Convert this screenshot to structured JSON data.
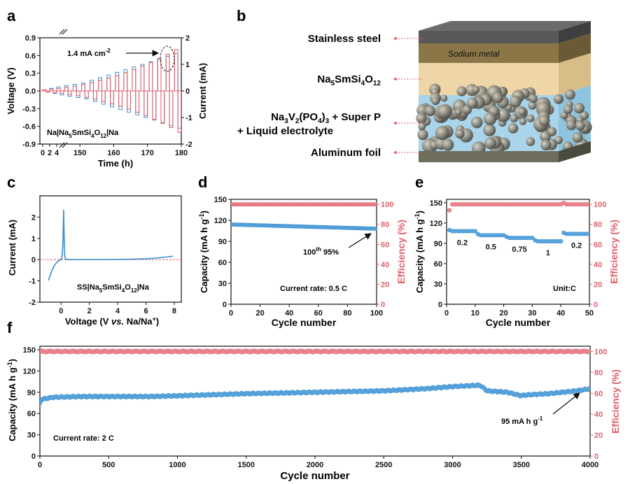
{
  "colors": {
    "red": "#e0606b",
    "blue": "#3a8fd0",
    "blue_face": "#5ba6dd",
    "red_face": "#ec8a93"
  },
  "panels": {
    "a": {
      "letter": "a",
      "ylabel_left": "Voltage (V)",
      "ylabel_right": "Current (mA)",
      "xlabel": "Time (h)",
      "annotation": "1.4 mA cm",
      "annotation_sup": "-2",
      "cell_label": {
        "t1": "Na|Na",
        "s1": "5",
        "t2": "SmSi",
        "s2": "4",
        "t3": "O",
        "s3": "12",
        "t4": "|Na"
      }
    },
    "b": {
      "letter": "b",
      "label_steel": "Stainless steel",
      "label_sodium": "Sodium metal",
      "label_electrolyte": {
        "t1": "Na",
        "s1": "5",
        "t2": "SmSi",
        "s2": "4",
        "t3": "O",
        "s3": "12"
      },
      "label_cathode_line1": {
        "t1": "Na",
        "s1": "3",
        "t2": "V",
        "s2": "2",
        "t3": "(PO",
        "s3": "4",
        "t4": ")",
        "s4": "3",
        "t5": " + Super P"
      },
      "label_cathode_line2": "+ Liquid electrolyte",
      "label_al": "Aluminum foil"
    },
    "c": {
      "letter": "c",
      "ylabel": "Current (mA)",
      "xlabel": {
        "t1": "Voltage (V ",
        "t2": "vs.",
        "t3": " Na/Na",
        "s": "+",
        "t4": ")"
      },
      "cell_label": {
        "t1": "SS|Na",
        "s1": "5",
        "t2": "SmSi",
        "s2": "4",
        "t3": "O",
        "s3": "12",
        "t4": "|Na"
      }
    },
    "d": {
      "letter": "d",
      "ylabel_left": "Capacity (mA h g",
      "ylabel_left_sup": "-1",
      "ylabel_left_end": ")",
      "ylabel_right": "Efficiency (%)",
      "xlabel": "Cycle number",
      "annotation": {
        "t1": "100",
        "sup": "th",
        "t2": " 95%"
      },
      "rate_label": "Current rate: 0.5 C"
    },
    "e": {
      "letter": "e",
      "ylabel_left": "Capacity (mA h g",
      "ylabel_left_sup": "-1",
      "ylabel_left_end": ")",
      "ylabel_right": "Efficiency (%)",
      "xlabel": "Cycle number",
      "rate_labels": [
        "0.2",
        "0.5",
        "0.75",
        "1",
        "0.2"
      ],
      "unit_label": "Unit:C"
    },
    "f": {
      "letter": "f",
      "ylabel_left": "Capacity (mA h g",
      "ylabel_left_sup": "-1",
      "ylabel_left_end": ")",
      "ylabel_right": "Efficiency (%)",
      "xlabel": "Cycle number",
      "annotation": "95 mA h g",
      "annotation_sup": "-1",
      "rate_label": "Current rate: 2 C"
    }
  },
  "chart_data": [
    {
      "panel": "a",
      "type": "line",
      "title": "",
      "xlabel": "Time (h)",
      "ylabel": "Voltage (V)",
      "y2label": "Current (mA)",
      "xticks": [
        "0",
        "2",
        "4",
        "150",
        "160",
        "170",
        "180"
      ],
      "xlim_broken": [
        [
          0,
          4
        ],
        [
          145,
          180
        ]
      ],
      "ylim": [
        -0.9,
        0.9
      ],
      "yticks": [
        -0.9,
        -0.6,
        -0.3,
        0.0,
        0.3,
        0.6,
        0.9
      ],
      "y2lim": [
        -2,
        2
      ],
      "y2ticks": [
        -2,
        -1,
        0,
        1,
        2
      ],
      "series": [
        {
          "name": "Voltage",
          "color": "#e0606b",
          "steps_h": [
            0,
            2,
            4,
            145.5,
            148,
            150.5,
            153,
            155.5,
            158,
            160.5,
            163,
            165.5,
            168,
            170.5,
            173,
            175.5,
            178
          ],
          "peak_voltage": [
            0.02,
            0.03,
            0.04,
            0.06,
            0.08,
            0.11,
            0.14,
            0.18,
            0.22,
            0.26,
            0.31,
            0.36,
            0.42,
            0.48,
            0.55,
            0.62,
            0.7
          ]
        },
        {
          "name": "Current",
          "color": "#3a8fd0",
          "steps_h": [
            0,
            2,
            4,
            145.5,
            148,
            150.5,
            153,
            155.5,
            158,
            160.5,
            163,
            165.5,
            168,
            170.5,
            173,
            175.5,
            178
          ],
          "current_mA": [
            0.05,
            0.1,
            0.15,
            0.2,
            0.25,
            0.3,
            0.4,
            0.5,
            0.6,
            0.7,
            0.8,
            0.9,
            1.0,
            1.1,
            1.2,
            1.3,
            1.4
          ]
        }
      ]
    },
    {
      "panel": "c",
      "type": "line",
      "title": "",
      "xlabel": "Voltage (V vs. Na/Na+)",
      "ylabel": "Current (mA)",
      "xlim": [
        -1.5,
        8.5
      ],
      "xticks": [
        0,
        2,
        4,
        6,
        8
      ],
      "ylim": [
        -2,
        3
      ],
      "yticks": [
        -2,
        -1,
        0,
        1,
        2
      ],
      "series": [
        {
          "name": "LSV",
          "color": "#3a8fd0",
          "x": [
            -0.9,
            -0.7,
            -0.5,
            -0.3,
            -0.1,
            0.05,
            0.12,
            0.18,
            0.24,
            0.3,
            0.6,
            1,
            2,
            3,
            4,
            5,
            6,
            6.5,
            7,
            7.5,
            7.9
          ],
          "y": [
            -0.98,
            -0.6,
            -0.3,
            -0.12,
            -0.03,
            0.05,
            0.6,
            2.35,
            0.3,
            0.02,
            0.0,
            0.0,
            0.0,
            0.0,
            0.01,
            0.02,
            0.04,
            0.06,
            0.09,
            0.13,
            0.16
          ]
        },
        {
          "name": "zero line",
          "color": "#e0606b",
          "x": [
            -1.5,
            8.5
          ],
          "y": [
            0,
            0
          ]
        }
      ]
    },
    {
      "panel": "d",
      "type": "scatter",
      "title": "",
      "xlabel": "Cycle number",
      "ylabel": "Capacity (mA h g-1)",
      "y2label": "Efficiency (%)",
      "xlim": [
        0,
        100
      ],
      "xticks": [
        0,
        20,
        40,
        60,
        80,
        100
      ],
      "ylim": [
        0,
        150
      ],
      "yticks": [
        0,
        30,
        60,
        90,
        120,
        150
      ],
      "y2lim": [
        0,
        105
      ],
      "y2ticks": [
        0,
        20,
        40,
        60,
        80,
        100
      ],
      "series": [
        {
          "name": "Capacity",
          "axis": "left",
          "color": "#3a8fd0",
          "x_range": [
            1,
            100
          ],
          "start": 114,
          "end": 108
        },
        {
          "name": "Efficiency",
          "axis": "right",
          "color": "#e0606b",
          "x_range": [
            1,
            100
          ],
          "value": 100
        }
      ]
    },
    {
      "panel": "e",
      "type": "scatter",
      "title": "",
      "xlabel": "Cycle number",
      "ylabel": "Capacity (mA h g-1)",
      "y2label": "Efficiency (%)",
      "xlim": [
        0,
        50
      ],
      "xticks": [
        0,
        10,
        20,
        30,
        40,
        50
      ],
      "ylim": [
        0,
        155
      ],
      "yticks": [
        0,
        30,
        60,
        90,
        120,
        150
      ],
      "y2lim": [
        0,
        105
      ],
      "y2ticks": [
        0,
        20,
        40,
        60,
        80,
        100
      ],
      "series": [
        {
          "name": "Capacity",
          "axis": "left",
          "color": "#3a8fd0",
          "segments": [
            {
              "rate": "0.2",
              "cycles": [
                1,
                10
              ],
              "capacity": 108
            },
            {
              "rate": "0.5",
              "cycles": [
                11,
                20
              ],
              "capacity": 102
            },
            {
              "rate": "0.75",
              "cycles": [
                21,
                30
              ],
              "capacity": 98
            },
            {
              "rate": "1",
              "cycles": [
                31,
                40
              ],
              "capacity": 93
            },
            {
              "rate": "0.2",
              "cycles": [
                41,
                50
              ],
              "capacity": 104
            }
          ]
        },
        {
          "name": "Efficiency",
          "axis": "right",
          "color": "#e0606b",
          "x_range": [
            1,
            50
          ],
          "value": 100
        }
      ]
    },
    {
      "panel": "f",
      "type": "scatter",
      "title": "",
      "xlabel": "Cycle number",
      "ylabel": "Capacity (mA h g-1)",
      "y2label": "Efficiency (%)",
      "xlim": [
        0,
        4000
      ],
      "xticks": [
        0,
        500,
        1000,
        1500,
        2000,
        2500,
        3000,
        3500,
        4000
      ],
      "ylim": [
        0,
        155
      ],
      "yticks": [
        0,
        30,
        60,
        90,
        120,
        150
      ],
      "y2lim": [
        0,
        105
      ],
      "y2ticks": [
        0,
        20,
        40,
        60,
        80,
        100
      ],
      "series": [
        {
          "name": "Capacity",
          "axis": "left",
          "color": "#3a8fd0",
          "x": [
            1,
            10,
            100,
            300,
            600,
            800,
            1000,
            1500,
            2000,
            2500,
            2800,
            3000,
            3200,
            3250,
            3400,
            3500,
            3520,
            3700,
            3900,
            4000
          ],
          "y": [
            75,
            80,
            83,
            84,
            84,
            84,
            85,
            88,
            90,
            92,
            95,
            98,
            100,
            92,
            90,
            85,
            86,
            88,
            92,
            95
          ]
        },
        {
          "name": "Efficiency",
          "axis": "right",
          "color": "#e0606b",
          "x_range": [
            1,
            4000
          ],
          "value": 100
        }
      ]
    }
  ]
}
